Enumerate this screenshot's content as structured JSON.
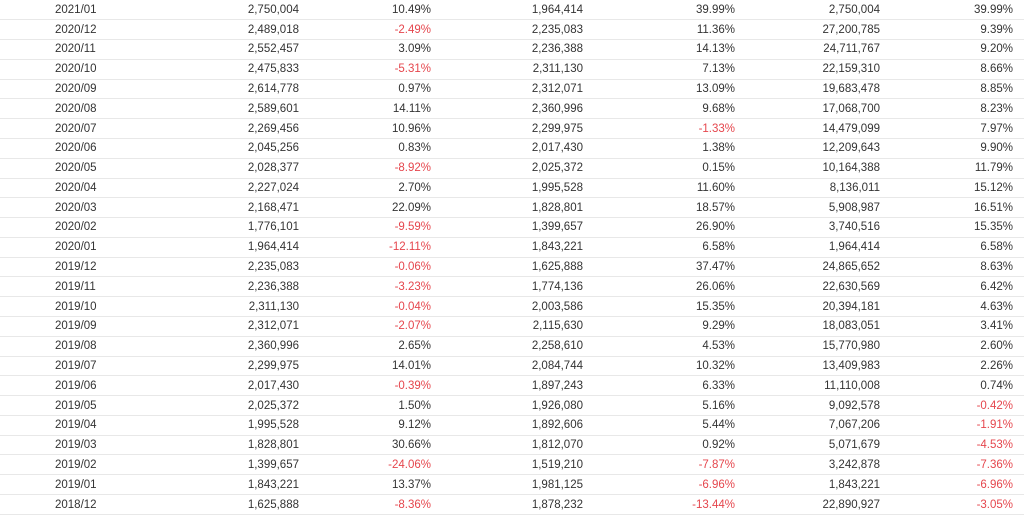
{
  "colors": {
    "text": "#333333",
    "negative": "#e5464d",
    "row_border": "#e8e8e8",
    "background": "#ffffff"
  },
  "chart_data": {
    "type": "table",
    "grid": "horizontal-row-borders",
    "note_negative_values_shown_in_red": true,
    "rows": [
      [
        "2021/01",
        "2,750,004",
        "10.49%",
        "1,964,414",
        "39.99%",
        "2,750,004",
        "39.99%"
      ],
      [
        "2020/12",
        "2,489,018",
        "-2.49%",
        "2,235,083",
        "11.36%",
        "27,200,785",
        "9.39%"
      ],
      [
        "2020/11",
        "2,552,457",
        "3.09%",
        "2,236,388",
        "14.13%",
        "24,711,767",
        "9.20%"
      ],
      [
        "2020/10",
        "2,475,833",
        "-5.31%",
        "2,311,130",
        "7.13%",
        "22,159,310",
        "8.66%"
      ],
      [
        "2020/09",
        "2,614,778",
        "0.97%",
        "2,312,071",
        "13.09%",
        "19,683,478",
        "8.85%"
      ],
      [
        "2020/08",
        "2,589,601",
        "14.11%",
        "2,360,996",
        "9.68%",
        "17,068,700",
        "8.23%"
      ],
      [
        "2020/07",
        "2,269,456",
        "10.96%",
        "2,299,975",
        "-1.33%",
        "14,479,099",
        "7.97%"
      ],
      [
        "2020/06",
        "2,045,256",
        "0.83%",
        "2,017,430",
        "1.38%",
        "12,209,643",
        "9.90%"
      ],
      [
        "2020/05",
        "2,028,377",
        "-8.92%",
        "2,025,372",
        "0.15%",
        "10,164,388",
        "11.79%"
      ],
      [
        "2020/04",
        "2,227,024",
        "2.70%",
        "1,995,528",
        "11.60%",
        "8,136,011",
        "15.12%"
      ],
      [
        "2020/03",
        "2,168,471",
        "22.09%",
        "1,828,801",
        "18.57%",
        "5,908,987",
        "16.51%"
      ],
      [
        "2020/02",
        "1,776,101",
        "-9.59%",
        "1,399,657",
        "26.90%",
        "3,740,516",
        "15.35%"
      ],
      [
        "2020/01",
        "1,964,414",
        "-12.11%",
        "1,843,221",
        "6.58%",
        "1,964,414",
        "6.58%"
      ],
      [
        "2019/12",
        "2,235,083",
        "-0.06%",
        "1,625,888",
        "37.47%",
        "24,865,652",
        "8.63%"
      ],
      [
        "2019/11",
        "2,236,388",
        "-3.23%",
        "1,774,136",
        "26.06%",
        "22,630,569",
        "6.42%"
      ],
      [
        "2019/10",
        "2,311,130",
        "-0.04%",
        "2,003,586",
        "15.35%",
        "20,394,181",
        "4.63%"
      ],
      [
        "2019/09",
        "2,312,071",
        "-2.07%",
        "2,115,630",
        "9.29%",
        "18,083,051",
        "3.41%"
      ],
      [
        "2019/08",
        "2,360,996",
        "2.65%",
        "2,258,610",
        "4.53%",
        "15,770,980",
        "2.60%"
      ],
      [
        "2019/07",
        "2,299,975",
        "14.01%",
        "2,084,744",
        "10.32%",
        "13,409,983",
        "2.26%"
      ],
      [
        "2019/06",
        "2,017,430",
        "-0.39%",
        "1,897,243",
        "6.33%",
        "11,110,008",
        "0.74%"
      ],
      [
        "2019/05",
        "2,025,372",
        "1.50%",
        "1,926,080",
        "5.16%",
        "9,092,578",
        "-0.42%"
      ],
      [
        "2019/04",
        "1,995,528",
        "9.12%",
        "1,892,606",
        "5.44%",
        "7,067,206",
        "-1.91%"
      ],
      [
        "2019/03",
        "1,828,801",
        "30.66%",
        "1,812,070",
        "0.92%",
        "5,071,679",
        "-4.53%"
      ],
      [
        "2019/02",
        "1,399,657",
        "-24.06%",
        "1,519,210",
        "-7.87%",
        "3,242,878",
        "-7.36%"
      ],
      [
        "2019/01",
        "1,843,221",
        "13.37%",
        "1,981,125",
        "-6.96%",
        "1,843,221",
        "-6.96%"
      ],
      [
        "2018/12",
        "1,625,888",
        "-8.36%",
        "1,878,232",
        "-13.44%",
        "22,890,927",
        "-3.05%"
      ]
    ]
  }
}
